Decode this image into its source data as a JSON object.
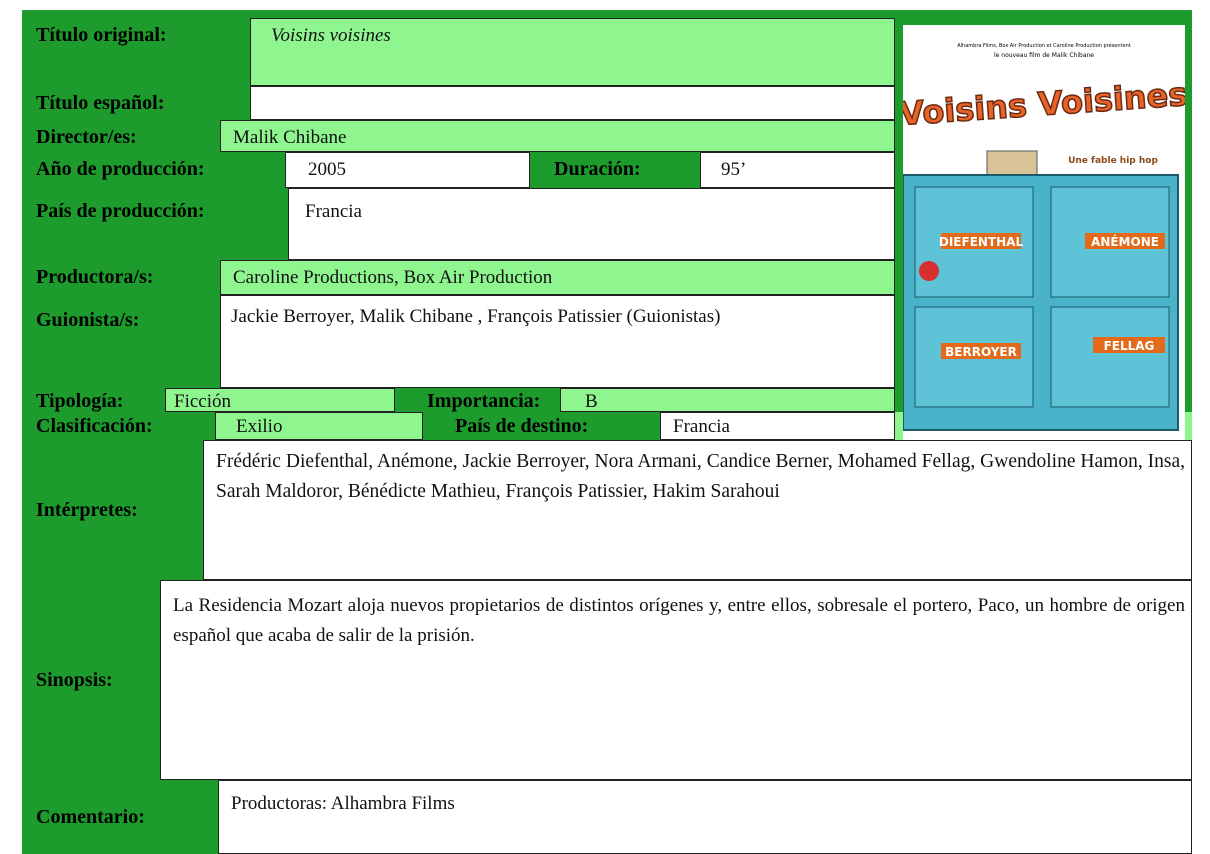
{
  "card": {
    "rows": [
      {
        "label": "Título original:",
        "value": "Voisins voisines"
      },
      {
        "label": "Título español:",
        "value": ""
      },
      {
        "label": "Director/es:",
        "value": "Malik Chibane"
      },
      {
        "label": "Año de producción:",
        "value": "2005",
        "label2": "Duración:",
        "value2": "95’"
      },
      {
        "label": "País de producción:",
        "value": "Francia"
      },
      {
        "label": "Productora/s:",
        "value": "Caroline Productions, Box Air Production"
      },
      {
        "label": "Guionista/s:",
        "value": "Jackie Berroyer, Malik Chibane , François Patissier (Guionistas)"
      },
      {
        "label": "Tipología:",
        "value": "Ficción",
        "label2": "Importancia:",
        "value2": "B"
      },
      {
        "label": "Clasificación:",
        "value": "Exilio",
        "label2": "País de destino:",
        "value2": "Francia"
      },
      {
        "label": "Intérpretes:",
        "value": "Frédéric Diefenthal, Anémone, Jackie Berroyer, Nora Armani, Candice Berner, Mohamed Fellag, Gwendoline Hamon, Insa, Sarah Maldoror, Bénédicte Mathieu, François Patissier, Hakim Sarahoui"
      },
      {
        "label": "Sinopsis:",
        "value": "La Residencia Mozart aloja nuevos propietarios de distintos orígenes y, entre ellos, sobresale el portero, Paco, un hombre de origen español que acaba de salir de la prisión."
      },
      {
        "label": "Comentario:",
        "value": "Productoras: Alhambra Films"
      }
    ],
    "poster": {
      "credit": "Alhambra Films, Box Air Production et Caroline Production présentent",
      "tagline_top": "le nouveau film de Malik Chibane",
      "title": "Voisins Voisines",
      "subtitle": "Une fable hip hop",
      "names": [
        "DIEFENTHAL",
        "ANÉMONE",
        "BERROYER",
        "FELLAG"
      ]
    }
  }
}
